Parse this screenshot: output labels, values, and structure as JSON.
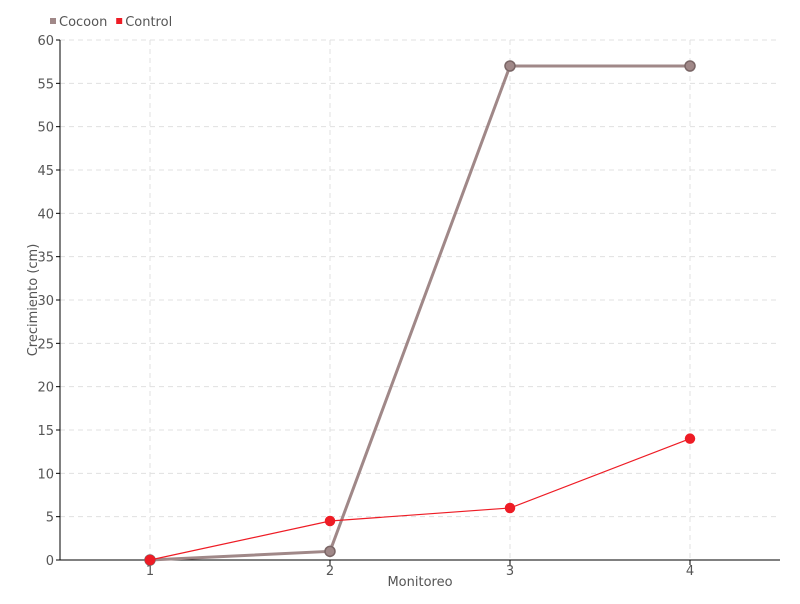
{
  "chart_data": {
    "type": "line",
    "title": "",
    "xlabel": "Monitoreo",
    "ylabel": "Crecimiento (cm)",
    "categories": [
      "1",
      "2",
      "3",
      "4"
    ],
    "ylim": [
      0,
      60
    ],
    "yticks": [
      "0",
      "5",
      "10",
      "15",
      "20",
      "25",
      "30",
      "35",
      "40",
      "45",
      "50",
      "55",
      "60"
    ],
    "grid": true,
    "legend_position": "top-left",
    "series": [
      {
        "name": "Cocoon",
        "values": [
          0,
          1,
          57,
          57
        ],
        "color": "#a08888"
      },
      {
        "name": "Control",
        "values": [
          0,
          4.5,
          6,
          14
        ],
        "color": "#ee1c25"
      }
    ]
  }
}
